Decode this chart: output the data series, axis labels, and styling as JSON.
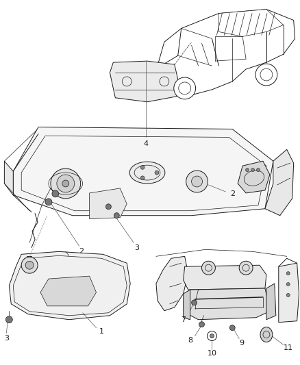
{
  "bg_color": "#ffffff",
  "fig_width": 4.38,
  "fig_height": 5.33,
  "dpi": 100,
  "line_color": "#1a1a1a",
  "fill_light": "#f2f2f2",
  "fill_mid": "#e0e0e0",
  "fill_dark": "#c8c8c8"
}
